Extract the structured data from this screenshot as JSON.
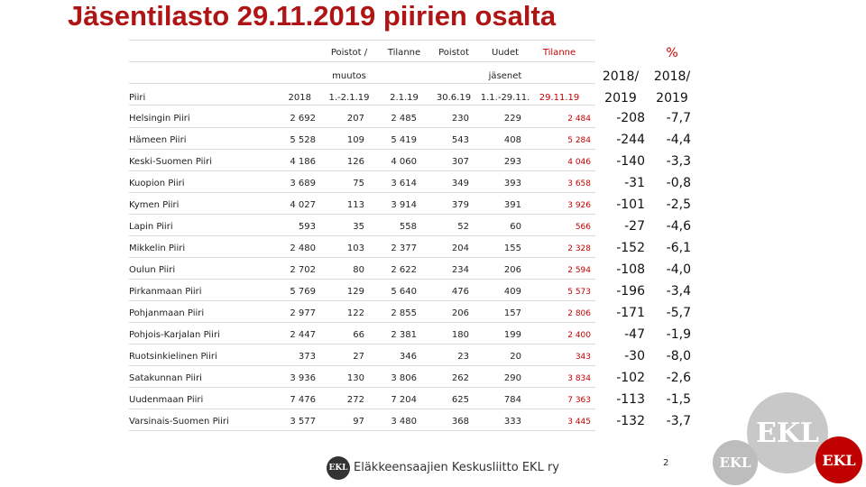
{
  "header": {
    "title": "Jäsentilasto 29.11.2019 piirien osalta"
  },
  "table": {
    "head": [
      [
        "",
        "",
        "Poistot /",
        "Tilanne",
        "Poistot",
        "Uudet",
        "Tilanne",
        "",
        "%"
      ],
      [
        "",
        "",
        "muutos",
        "",
        "",
        "jäsenet",
        "",
        "2018/",
        "2018/"
      ],
      [
        "Piiri",
        "2018",
        "1.-2.1.19",
        "2.1.19",
        "30.6.19",
        "1.1.-29.11.",
        "29.11.19",
        "2019",
        "2019"
      ]
    ],
    "rows": [
      [
        "Helsingin Piiri",
        "2 692",
        "207",
        "2 485",
        "230",
        "229",
        "2 484",
        "-208",
        "-7,7"
      ],
      [
        "Hämeen Piiri",
        "5 528",
        "109",
        "5 419",
        "543",
        "408",
        "5 284",
        "-244",
        "-4,4"
      ],
      [
        "Keski-Suomen Piiri",
        "4 186",
        "126",
        "4 060",
        "307",
        "293",
        "4 046",
        "-140",
        "-3,3"
      ],
      [
        "Kuopion Piiri",
        "3 689",
        "75",
        "3 614",
        "349",
        "393",
        "3 658",
        "-31",
        "-0,8"
      ],
      [
        "Kymen Piiri",
        "4 027",
        "113",
        "3 914",
        "379",
        "391",
        "3 926",
        "-101",
        "-2,5"
      ],
      [
        "Lapin Piiri",
        "593",
        "35",
        "558",
        "52",
        "60",
        "566",
        "-27",
        "-4,6"
      ],
      [
        "Mikkelin Piiri",
        "2 480",
        "103",
        "2 377",
        "204",
        "155",
        "2 328",
        "-152",
        "-6,1"
      ],
      [
        "Oulun Piiri",
        "2 702",
        "80",
        "2 622",
        "234",
        "206",
        "2 594",
        "-108",
        "-4,0"
      ],
      [
        "Pirkanmaan Piiri",
        "5 769",
        "129",
        "5 640",
        "476",
        "409",
        "5 573",
        "-196",
        "-3,4"
      ],
      [
        "Pohjanmaan Piiri",
        "2 977",
        "122",
        "2 855",
        "206",
        "157",
        "2 806",
        "-171",
        "-5,7"
      ],
      [
        "Pohjois-Karjalan Piiri",
        "2 447",
        "66",
        "2 381",
        "180",
        "199",
        "2 400",
        "-47",
        "-1,9"
      ],
      [
        "Ruotsinkielinen Piiri",
        "373",
        "27",
        "346",
        "23",
        "20",
        "343",
        "-30",
        "-8,0"
      ],
      [
        "Satakunnan Piiri",
        "3 936",
        "130",
        "3 806",
        "262",
        "290",
        "3 834",
        "-102",
        "-2,6"
      ],
      [
        "Uudenmaan Piiri",
        "7 476",
        "272",
        "7 204",
        "625",
        "784",
        "7 363",
        "-113",
        "-1,5"
      ],
      [
        "Varsinais-Suomen Piiri",
        "3 577",
        "97",
        "3 480",
        "368",
        "333",
        "3 445",
        "-132",
        "-3,7"
      ]
    ]
  },
  "footer": {
    "logo": "EKL",
    "organization": "Eläkkeensaajien Keskusliitto EKL ry",
    "page": "2",
    "corner_logos": [
      "EKL",
      "EKL",
      "EKL"
    ]
  }
}
